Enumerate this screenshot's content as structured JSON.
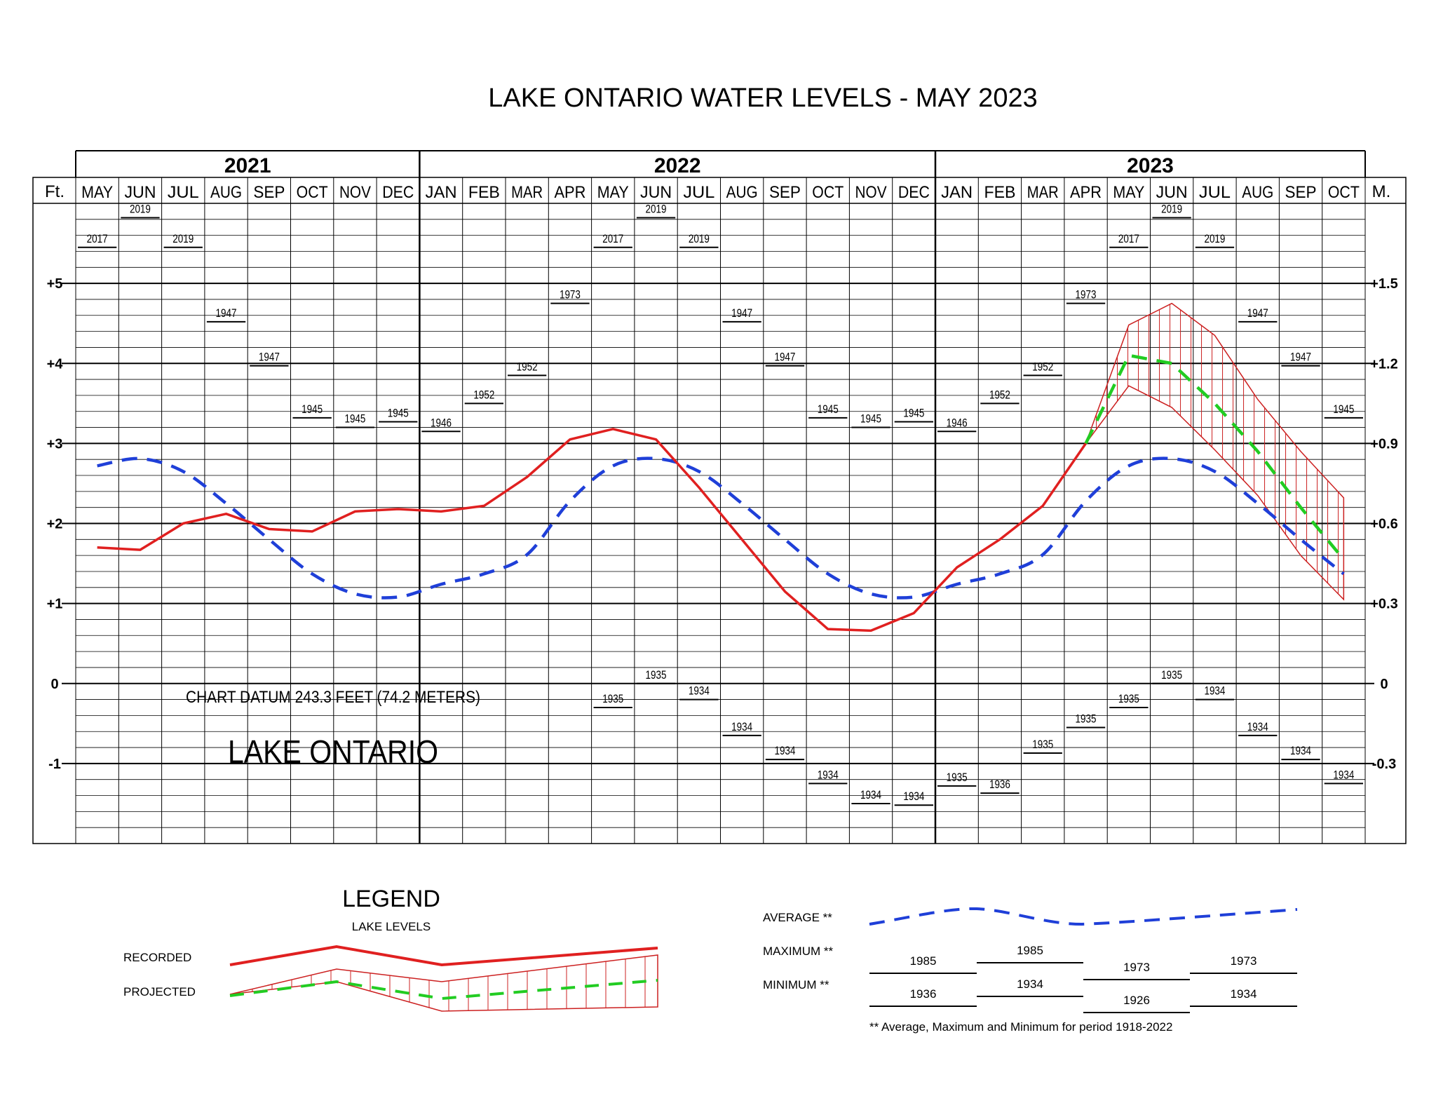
{
  "title": "LAKE ONTARIO WATER LEVELS - MAY 2023",
  "left_unit": "Ft.",
  "right_unit": "M.",
  "years": [
    {
      "label": "2021",
      "start": 0,
      "end": 8
    },
    {
      "label": "2022",
      "start": 8,
      "end": 20
    },
    {
      "label": "2023",
      "start": 20,
      "end": 30
    }
  ],
  "months": [
    "MAY",
    "JUN",
    "JUL",
    "AUG",
    "SEP",
    "OCT",
    "NOV",
    "DEC",
    "JAN",
    "FEB",
    "MAR",
    "APR",
    "MAY",
    "JUN",
    "JUL",
    "AUG",
    "SEP",
    "OCT",
    "NOV",
    "DEC",
    "JAN",
    "FEB",
    "MAR",
    "APR",
    "MAY",
    "JUN",
    "JUL",
    "AUG",
    "SEP",
    "OCT"
  ],
  "left_ticks": [
    {
      "v": 5,
      "label": "+5"
    },
    {
      "v": 4,
      "label": "+4"
    },
    {
      "v": 3,
      "label": "+3"
    },
    {
      "v": 2,
      "label": "+2"
    },
    {
      "v": 1,
      "label": "+1"
    },
    {
      "v": 0,
      "label": "0"
    },
    {
      "v": -1,
      "label": "-1"
    }
  ],
  "right_ticks": [
    {
      "v": 5,
      "label": "+1.5"
    },
    {
      "v": 4,
      "label": "+1.2"
    },
    {
      "v": 3,
      "label": "+0.9"
    },
    {
      "v": 2,
      "label": "+0.6"
    },
    {
      "v": 1,
      "label": "+0.3"
    },
    {
      "v": 0,
      "label": "0"
    },
    {
      "v": -1,
      "label": "-0.3"
    }
  ],
  "datum_note": "CHART DATUM  243.3 FEET (74.2 METERS)",
  "lake_label": "LAKE ONTARIO",
  "chart_data": {
    "type": "line",
    "title": "LAKE ONTARIO WATER LEVELS - MAY 2023",
    "ylabel": "Ft.",
    "ylabel_right": "M.",
    "ylim": [
      -2,
      6
    ],
    "grid": true,
    "x": [
      "MAY 2021",
      "JUN",
      "JUL",
      "AUG",
      "SEP",
      "OCT",
      "NOV",
      "DEC",
      "JAN 2022",
      "FEB",
      "MAR",
      "APR",
      "MAY",
      "JUN",
      "JUL",
      "AUG",
      "SEP",
      "OCT",
      "NOV",
      "DEC",
      "JAN 2023",
      "FEB",
      "MAR",
      "APR",
      "MAY",
      "JUN",
      "JUL",
      "AUG",
      "SEP",
      "OCT"
    ],
    "series": [
      {
        "name": "RECORDED",
        "color": "#e02020",
        "style": "solid",
        "values": [
          1.7,
          1.67,
          2.0,
          2.12,
          1.93,
          1.9,
          2.15,
          2.18,
          2.15,
          2.22,
          2.58,
          3.05,
          3.18,
          3.05,
          2.45,
          1.8,
          1.15,
          0.68,
          0.66,
          0.88,
          1.45,
          1.8,
          2.22,
          3.0,
          null,
          null,
          null,
          null,
          null,
          null
        ]
      },
      {
        "name": "PROJECTED",
        "color": "#22cc22",
        "style": "dashed",
        "values": [
          null,
          null,
          null,
          null,
          null,
          null,
          null,
          null,
          null,
          null,
          null,
          null,
          null,
          null,
          null,
          null,
          null,
          null,
          null,
          null,
          null,
          null,
          null,
          3.0,
          4.1,
          4.0,
          3.5,
          2.9,
          2.2,
          1.55
        ]
      },
      {
        "name": "PROJECTED MAX",
        "values": [
          null,
          null,
          null,
          null,
          null,
          null,
          null,
          null,
          null,
          null,
          null,
          null,
          null,
          null,
          null,
          null,
          null,
          null,
          null,
          null,
          null,
          null,
          null,
          3.0,
          4.48,
          4.75,
          4.35,
          3.55,
          2.9,
          2.32
        ]
      },
      {
        "name": "PROJECTED MIN",
        "values": [
          null,
          null,
          null,
          null,
          null,
          null,
          null,
          null,
          null,
          null,
          null,
          null,
          null,
          null,
          null,
          null,
          null,
          null,
          null,
          null,
          null,
          null,
          null,
          3.0,
          3.72,
          3.45,
          2.92,
          2.35,
          1.6,
          1.05
        ]
      },
      {
        "name": "AVERAGE",
        "color": "#1f3fd8",
        "style": "dashed",
        "values": [
          2.72,
          2.81,
          2.65,
          2.25,
          1.8,
          1.37,
          1.12,
          1.08,
          1.24,
          1.37,
          1.61,
          2.28,
          2.72,
          2.81,
          2.65,
          2.25,
          1.8,
          1.37,
          1.12,
          1.08,
          1.24,
          1.37,
          1.61,
          2.28,
          2.72,
          2.81,
          2.65,
          2.25,
          1.8,
          1.37
        ]
      }
    ],
    "maximum": [
      {
        "month": "MAY",
        "value": 5.45,
        "year": "2017"
      },
      {
        "month": "JUN",
        "value": 5.82,
        "year": "2019"
      },
      {
        "month": "JUL",
        "value": 5.45,
        "year": "2019"
      },
      {
        "month": "AUG",
        "value": 4.52,
        "year": "1947"
      },
      {
        "month": "SEP",
        "value": 3.97,
        "year": "1947"
      },
      {
        "month": "OCT",
        "value": 3.32,
        "year": "1945"
      },
      {
        "month": "NOV",
        "value": 3.2,
        "year": "1945"
      },
      {
        "month": "DEC",
        "value": 3.27,
        "year": "1945"
      },
      {
        "month": "JAN",
        "value": 3.15,
        "year": "1946"
      },
      {
        "month": "FEB",
        "value": 3.5,
        "year": "1952"
      },
      {
        "month": "MAR",
        "value": 3.85,
        "year": "1952"
      },
      {
        "month": "APR",
        "value": 4.75,
        "year": "1973"
      }
    ],
    "minimum": [
      {
        "month": "MAY",
        "value": -0.3,
        "year": "1935"
      },
      {
        "month": "JUN",
        "value": 0.0,
        "year": "1935"
      },
      {
        "month": "JUL",
        "value": -0.2,
        "year": "1934"
      },
      {
        "month": "AUG",
        "value": -0.65,
        "year": "1934"
      },
      {
        "month": "SEP",
        "value": -0.95,
        "year": "1934"
      },
      {
        "month": "OCT",
        "value": -1.25,
        "year": "1934"
      },
      {
        "month": "NOV",
        "value": -1.5,
        "year": "1934"
      },
      {
        "month": "DEC",
        "value": -1.52,
        "year": "1934"
      },
      {
        "month": "JAN",
        "value": -1.28,
        "year": "1935"
      },
      {
        "month": "FEB",
        "value": -1.37,
        "year": "1936"
      },
      {
        "month": "MAR",
        "value": -0.87,
        "year": "1935"
      },
      {
        "month": "APR",
        "value": -0.55,
        "year": "1935"
      }
    ]
  },
  "legend": {
    "title": "LEGEND",
    "subtitle": "LAKE LEVELS",
    "recorded_label": "RECORDED",
    "projected_label": "PROJECTED",
    "average_label": "AVERAGE **",
    "maximum_label": "MAXIMUM **",
    "minimum_label": "MINIMUM **",
    "max_years": [
      "1985",
      "1985",
      "1973",
      "1973"
    ],
    "min_years": [
      "1936",
      "1934",
      "1926",
      "1934"
    ],
    "footnote": "** Average, Maximum and Minimum for period 1918-2022"
  },
  "colors": {
    "recorded": "#e02020",
    "projected": "#22cc22",
    "average": "#1f3fd8",
    "projection_band": "#cc2020",
    "grid": "#000000"
  }
}
